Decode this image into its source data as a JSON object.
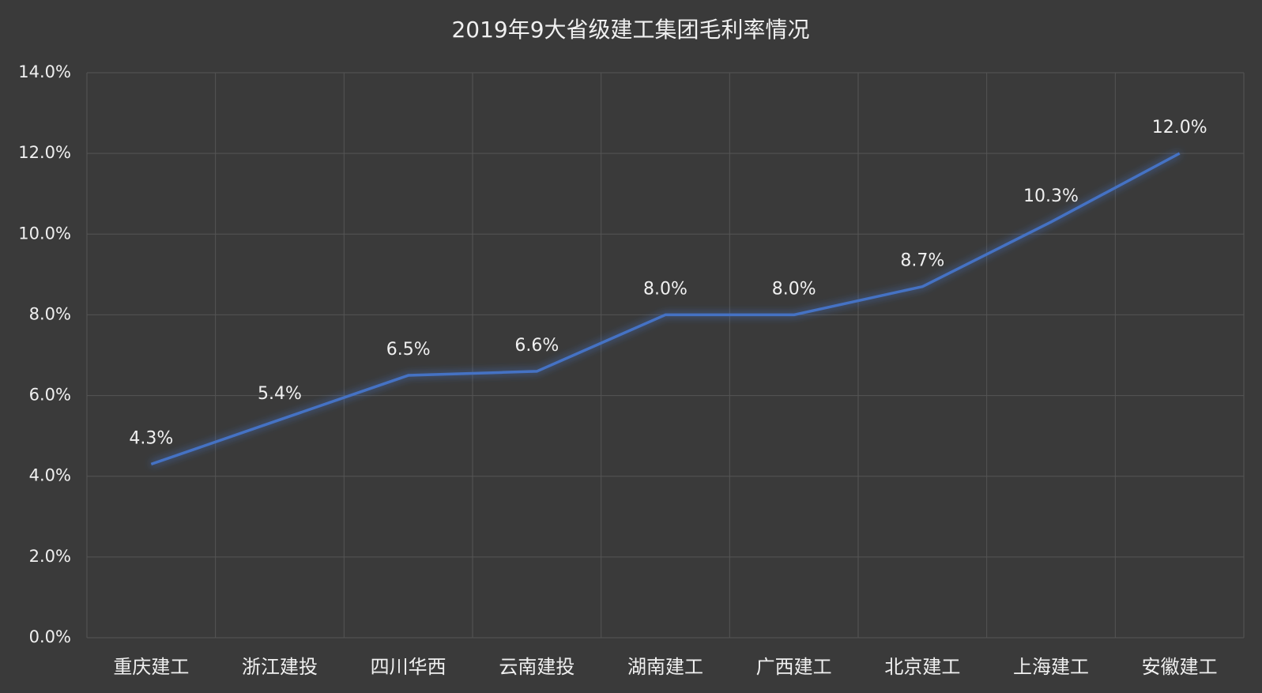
{
  "chart_data": {
    "type": "line",
    "title": "2019年9大省级建工集团毛利率情况",
    "categories": [
      "重庆建工",
      "浙江建投",
      "四川华西",
      "云南建投",
      "湖南建工",
      "广西建工",
      "北京建工",
      "上海建工",
      "安徽建工"
    ],
    "values": [
      4.3,
      5.4,
      6.5,
      6.6,
      8.0,
      8.0,
      8.7,
      10.3,
      12.0
    ],
    "value_labels": [
      "4.3%",
      "5.4%",
      "6.5%",
      "6.6%",
      "8.0%",
      "8.0%",
      "8.7%",
      "10.3%",
      "12.0%"
    ],
    "color": "#4472c4",
    "ylim": [
      0,
      14
    ],
    "yticks": [
      {
        "value": 0,
        "label": "0.0%"
      },
      {
        "value": 2,
        "label": "2.0%"
      },
      {
        "value": 4,
        "label": "4.0%"
      },
      {
        "value": 6,
        "label": "6.0%"
      },
      {
        "value": 8,
        "label": "8.0%"
      },
      {
        "value": 10,
        "label": "10.0%"
      },
      {
        "value": 12,
        "label": "12.0%"
      },
      {
        "value": 14,
        "label": "14.0%"
      }
    ],
    "grid": true
  }
}
